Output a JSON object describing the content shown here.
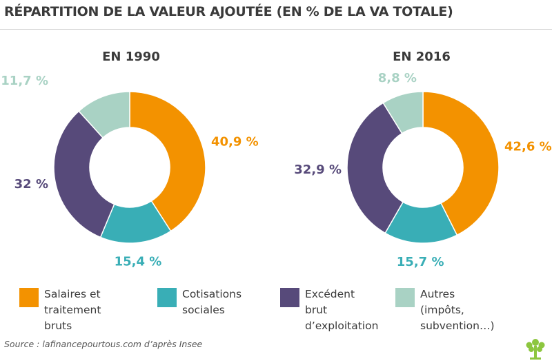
{
  "title": "RÉPARTITION DE LA VALEUR AJOUTÉE (EN % DE LA VA TOTALE)",
  "colors": {
    "salaires": "#f39200",
    "cotisations": "#39aeb6",
    "excedent": "#574a7a",
    "autres": "#a9d2c4"
  },
  "chart_data": [
    {
      "type": "pie",
      "variant": "donut",
      "title": "EN 1990",
      "categories": [
        "Salaires et traitement bruts",
        "Cotisations sociales",
        "Excédent brut d’exploitation",
        "Autres (impôts, subvention…)"
      ],
      "values": [
        40.9,
        15.4,
        32,
        11.7
      ],
      "data_labels": [
        "40,9 %",
        "15,4 %",
        "32 %",
        "11,7 %"
      ],
      "slice_colors": [
        "#f39200",
        "#39aeb6",
        "#574a7a",
        "#a9d2c4"
      ]
    },
    {
      "type": "pie",
      "variant": "donut",
      "title": "EN 2016",
      "categories": [
        "Salaires et traitement bruts",
        "Cotisations sociales",
        "Excédent brut d’exploitation",
        "Autres (impôts, subvention…)"
      ],
      "values": [
        42.6,
        15.7,
        32.9,
        8.8
      ],
      "data_labels": [
        "42,6 %",
        "15,7 %",
        "32,9 %",
        "8,8 %"
      ],
      "slice_colors": [
        "#f39200",
        "#39aeb6",
        "#574a7a",
        "#a9d2c4"
      ]
    }
  ],
  "legend": [
    {
      "label": "Salaires et\ntraitement bruts",
      "color": "#f39200"
    },
    {
      "label": "Cotisations\nsociales",
      "color": "#39aeb6"
    },
    {
      "label": "Excédent brut\nd’exploitation",
      "color": "#574a7a"
    },
    {
      "label": "Autres\n(impôts, subvention…)",
      "color": "#a9d2c4"
    }
  ],
  "source": "Source : lafinancepourtous.com d’après Insee",
  "logo_icon": "tree-logo-icon"
}
